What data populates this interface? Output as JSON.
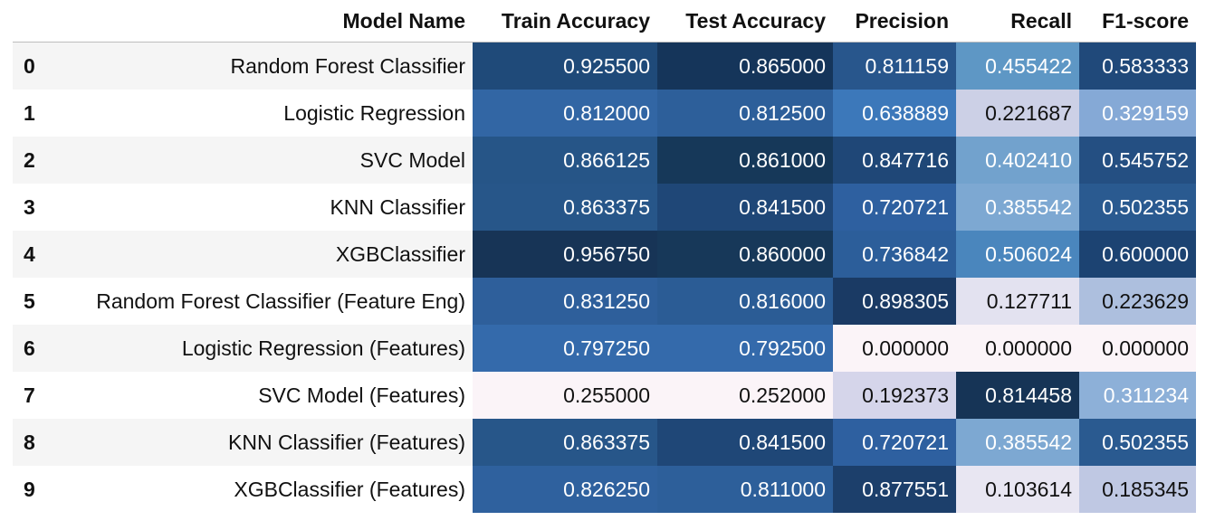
{
  "columns": [
    "",
    "Model Name",
    "Train Accuracy",
    "Test Accuracy",
    "Precision",
    "Recall",
    "F1-score"
  ],
  "rows": [
    {
      "index": "0",
      "name": "Random Forest Classifier",
      "cells": [
        {
          "text": "0.925500",
          "bg": "#1f4a79",
          "fg": "#ffffff"
        },
        {
          "text": "0.865000",
          "bg": "#15355a",
          "fg": "#ffffff"
        },
        {
          "text": "0.811159",
          "bg": "#28568c",
          "fg": "#ffffff"
        },
        {
          "text": "0.455422",
          "bg": "#5e97c5",
          "fg": "#ffffff"
        },
        {
          "text": "0.583333",
          "bg": "#20497a",
          "fg": "#ffffff"
        }
      ]
    },
    {
      "index": "1",
      "name": "Logistic Regression",
      "cells": [
        {
          "text": "0.812000",
          "bg": "#3266a4",
          "fg": "#ffffff"
        },
        {
          "text": "0.812500",
          "bg": "#2d5f9a",
          "fg": "#ffffff"
        },
        {
          "text": "0.638889",
          "bg": "#3c78ba",
          "fg": "#ffffff"
        },
        {
          "text": "0.221687",
          "bg": "#ccd0e6",
          "fg": "#111111"
        },
        {
          "text": "0.329159",
          "bg": "#85a9d6",
          "fg": "#ffffff"
        }
      ]
    },
    {
      "index": "2",
      "name": "SVC Model",
      "cells": [
        {
          "text": "0.866125",
          "bg": "#265587",
          "fg": "#ffffff"
        },
        {
          "text": "0.861000",
          "bg": "#163859",
          "fg": "#ffffff"
        },
        {
          "text": "0.847716",
          "bg": "#1f4777",
          "fg": "#ffffff"
        },
        {
          "text": "0.402410",
          "bg": "#72a2cd",
          "fg": "#ffffff"
        },
        {
          "text": "0.545752",
          "bg": "#244f82",
          "fg": "#ffffff"
        }
      ]
    },
    {
      "index": "3",
      "name": "KNN Classifier",
      "cells": [
        {
          "text": "0.863375",
          "bg": "#275689",
          "fg": "#ffffff"
        },
        {
          "text": "0.841500",
          "bg": "#1f4777",
          "fg": "#ffffff"
        },
        {
          "text": "0.720721",
          "bg": "#2e60a0",
          "fg": "#ffffff"
        },
        {
          "text": "0.385542",
          "bg": "#7da8d2",
          "fg": "#ffffff"
        },
        {
          "text": "0.502355",
          "bg": "#2a5a90",
          "fg": "#ffffff"
        }
      ]
    },
    {
      "index": "4",
      "name": "XGBClassifier",
      "cells": [
        {
          "text": "0.956750",
          "bg": "#173456",
          "fg": "#ffffff"
        },
        {
          "text": "0.860000",
          "bg": "#173859",
          "fg": "#ffffff"
        },
        {
          "text": "0.736842",
          "bg": "#2c5e9a",
          "fg": "#ffffff"
        },
        {
          "text": "0.506024",
          "bg": "#4a86bd",
          "fg": "#ffffff"
        },
        {
          "text": "0.600000",
          "bg": "#1c4372",
          "fg": "#ffffff"
        }
      ]
    },
    {
      "index": "5",
      "name": "Random Forest Classifier (Feature Eng)",
      "cells": [
        {
          "text": "0.831250",
          "bg": "#2e5f9b",
          "fg": "#ffffff"
        },
        {
          "text": "0.816000",
          "bg": "#2b5c95",
          "fg": "#ffffff"
        },
        {
          "text": "0.898305",
          "bg": "#1a3a64",
          "fg": "#ffffff"
        },
        {
          "text": "0.127711",
          "bg": "#e3e2f0",
          "fg": "#111111"
        },
        {
          "text": "0.223629",
          "bg": "#adbfde",
          "fg": "#111111"
        }
      ]
    },
    {
      "index": "6",
      "name": "Logistic Regression (Features)",
      "cells": [
        {
          "text": "0.797250",
          "bg": "#346aab",
          "fg": "#ffffff"
        },
        {
          "text": "0.792500",
          "bg": "#346aab",
          "fg": "#ffffff"
        },
        {
          "text": "0.000000",
          "bg": "#fbf4f8",
          "fg": "#111111"
        },
        {
          "text": "0.000000",
          "bg": "#fbf4f8",
          "fg": "#111111"
        },
        {
          "text": "0.000000",
          "bg": "#fbf4f8",
          "fg": "#111111"
        }
      ]
    },
    {
      "index": "7",
      "name": "SVC Model (Features)",
      "cells": [
        {
          "text": "0.255000",
          "bg": "#fbf4f8",
          "fg": "#111111"
        },
        {
          "text": "0.252000",
          "bg": "#fbf4f8",
          "fg": "#111111"
        },
        {
          "text": "0.192373",
          "bg": "#d5d5ea",
          "fg": "#111111"
        },
        {
          "text": "0.814458",
          "bg": "#163456",
          "fg": "#ffffff"
        },
        {
          "text": "0.311234",
          "bg": "#8db0d8",
          "fg": "#ffffff"
        }
      ]
    },
    {
      "index": "8",
      "name": "KNN Classifier (Features)",
      "cells": [
        {
          "text": "0.863375",
          "bg": "#275689",
          "fg": "#ffffff"
        },
        {
          "text": "0.841500",
          "bg": "#1f4777",
          "fg": "#ffffff"
        },
        {
          "text": "0.720721",
          "bg": "#2e60a0",
          "fg": "#ffffff"
        },
        {
          "text": "0.385542",
          "bg": "#7da8d2",
          "fg": "#ffffff"
        },
        {
          "text": "0.502355",
          "bg": "#2a5a90",
          "fg": "#ffffff"
        }
      ]
    },
    {
      "index": "9",
      "name": "XGBClassifier (Features)",
      "cells": [
        {
          "text": "0.826250",
          "bg": "#2f619e",
          "fg": "#ffffff"
        },
        {
          "text": "0.811000",
          "bg": "#2d5f9a",
          "fg": "#ffffff"
        },
        {
          "text": "0.877551",
          "bg": "#1c3f6b",
          "fg": "#ffffff"
        },
        {
          "text": "0.103614",
          "bg": "#e8e6f2",
          "fg": "#111111"
        },
        {
          "text": "0.185345",
          "bg": "#bfc8e3",
          "fg": "#111111"
        }
      ]
    }
  ]
}
